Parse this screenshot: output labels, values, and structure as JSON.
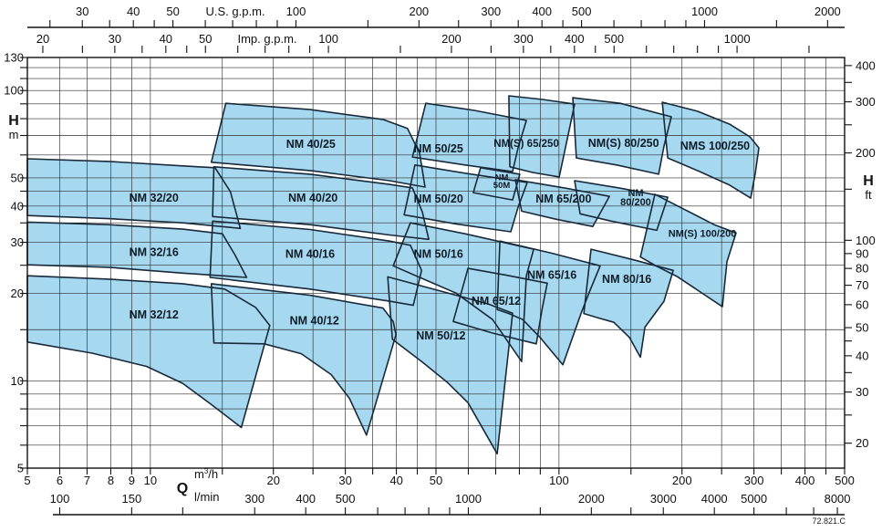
{
  "meta": {
    "code": "72.821.C"
  },
  "axes": {
    "us": {
      "label": "U.S. g.p.m.",
      "ticks": [
        25,
        30,
        35,
        40,
        45,
        50,
        60,
        70,
        80,
        90,
        100,
        150,
        200,
        250,
        300,
        350,
        400,
        450,
        500,
        600,
        700,
        800,
        900,
        1000,
        1500,
        2000
      ],
      "labeled": [
        30,
        40,
        50,
        100,
        200,
        300,
        400,
        500,
        1000,
        2000
      ]
    },
    "imp": {
      "label": "Imp. g.p.m.",
      "ticks": [
        20,
        25,
        30,
        35,
        40,
        45,
        50,
        60,
        70,
        80,
        90,
        100,
        150,
        200,
        250,
        300,
        350,
        400,
        450,
        500,
        600,
        700,
        800,
        900,
        1000,
        1500
      ],
      "labeled": [
        20,
        30,
        40,
        50,
        100,
        200,
        300,
        400,
        500,
        1000
      ]
    },
    "left": {
      "title": "H",
      "unit": "m",
      "ticks": [
        5,
        6,
        7,
        8,
        9,
        10,
        15,
        20,
        25,
        30,
        35,
        40,
        45,
        50,
        60,
        70,
        80,
        90,
        100,
        110,
        120,
        130
      ],
      "labeled": [
        5,
        10,
        20,
        30,
        40,
        50,
        100,
        130
      ]
    },
    "right": {
      "title": "H",
      "unit": "ft",
      "ticks": [
        20,
        25,
        30,
        35,
        40,
        45,
        50,
        60,
        70,
        80,
        90,
        100,
        150,
        200,
        250,
        300,
        350,
        400
      ],
      "labeled": [
        20,
        30,
        40,
        50,
        60,
        70,
        80,
        90,
        100,
        200,
        300,
        400
      ]
    },
    "m3h": {
      "title": "Q",
      "unit": "m³/h",
      "ticks": [
        5,
        6,
        7,
        8,
        9,
        10,
        15,
        20,
        25,
        30,
        35,
        40,
        45,
        50,
        60,
        70,
        80,
        90,
        100,
        150,
        200,
        250,
        300,
        350,
        400,
        450,
        500
      ],
      "labeled": [
        5,
        6,
        7,
        8,
        9,
        10,
        20,
        30,
        40,
        50,
        100,
        200,
        300,
        400,
        500
      ]
    },
    "lmin": {
      "unit": "l/min",
      "ticks": [
        100,
        150,
        200,
        300,
        400,
        500,
        600,
        700,
        800,
        900,
        1000,
        1500,
        2000,
        2500,
        3000,
        4000,
        5000,
        6000,
        7000,
        8000
      ],
      "labeled": [
        100,
        150,
        300,
        400,
        500,
        1000,
        2000,
        3000,
        4000,
        5000,
        8000
      ]
    }
  },
  "chart_data": {
    "type": "area",
    "title": "Pump selection envelopes (head vs flow)",
    "x_axis": {
      "unit": "m³/h",
      "scale": "log",
      "range": [
        5,
        500
      ]
    },
    "y_axis": {
      "unit": "m",
      "scale": "log",
      "range": [
        5,
        130
      ]
    },
    "grid": "on",
    "grid_q": [
      5,
      6,
      7,
      8,
      9,
      10,
      15,
      20,
      25,
      30,
      35,
      40,
      45,
      50,
      60,
      70,
      80,
      90,
      100,
      150,
      200,
      250,
      300,
      350,
      400,
      450,
      500
    ],
    "grid_h": [
      5,
      6,
      7,
      8,
      9,
      10,
      15,
      20,
      25,
      30,
      35,
      40,
      45,
      50,
      60,
      70,
      80,
      90,
      100,
      110,
      120,
      130
    ],
    "envelopes": [
      {
        "name": "NM 32/20",
        "label": [
          "NM 32/20"
        ],
        "label_at": [
          10.2,
          42.6
        ],
        "pts": [
          [
            5,
            58.2
          ],
          [
            7.9,
            57.0
          ],
          [
            12.0,
            55.0
          ],
          [
            14.4,
            54.2
          ],
          [
            15.7,
            44.8
          ],
          [
            16.6,
            33.5
          ],
          [
            12.0,
            35.0
          ],
          [
            7.9,
            36.2
          ],
          [
            5,
            37.1
          ]
        ]
      },
      {
        "name": "NM 32/16",
        "label": [
          "NM 32/16"
        ],
        "label_at": [
          10.2,
          27.7
        ],
        "pts": [
          [
            5,
            35.2
          ],
          [
            7.9,
            34.5
          ],
          [
            12.0,
            33.3
          ],
          [
            15.0,
            32.1
          ],
          [
            16.1,
            27.2
          ],
          [
            17.2,
            22.7
          ],
          [
            12.0,
            23.5
          ],
          [
            7.9,
            24.6
          ],
          [
            5,
            25.1
          ]
        ]
      },
      {
        "name": "NM 32/12",
        "label": [
          "NM 32/12"
        ],
        "label_at": [
          10.2,
          16.9
        ],
        "pts": [
          [
            5,
            23.0
          ],
          [
            7.9,
            22.4
          ],
          [
            12.0,
            21.6
          ],
          [
            15.2,
            20.7
          ],
          [
            18.1,
            17.9
          ],
          [
            19.6,
            15.5
          ],
          [
            16.7,
            6.9
          ],
          [
            14.0,
            8.35
          ],
          [
            12.0,
            9.8
          ],
          [
            9.8,
            11.2
          ],
          [
            7.2,
            12.45
          ],
          [
            5,
            13.6
          ]
        ]
      },
      {
        "name": "NM 40/25",
        "label": [
          "NM 40/25"
        ],
        "label_at": [
          24.7,
          65.3
        ],
        "pts": [
          [
            15.3,
            90.4
          ],
          [
            24.6,
            86.0
          ],
          [
            37.1,
            79.5
          ],
          [
            42.6,
            74.0
          ],
          [
            45.6,
            60.7
          ],
          [
            47.0,
            46.5
          ],
          [
            38.5,
            48.9
          ],
          [
            24.6,
            53.0
          ],
          [
            14.1,
            56.6
          ]
        ]
      },
      {
        "name": "NM 40/20",
        "label": [
          "NM 40/20"
        ],
        "label_at": [
          25.0,
          42.6
        ],
        "pts": [
          [
            14.3,
            54.6
          ],
          [
            24.6,
            51.5
          ],
          [
            38.5,
            47.5
          ],
          [
            43.8,
            46.2
          ],
          [
            46.3,
            38.2
          ],
          [
            48.0,
            30.7
          ],
          [
            38.5,
            31.8
          ],
          [
            24.6,
            34.5
          ],
          [
            14.2,
            36.8
          ]
        ]
      },
      {
        "name": "NM 40/16",
        "label": [
          "NM 40/16"
        ],
        "label_at": [
          24.6,
          27.3
        ],
        "pts": [
          [
            14.2,
            35.5
          ],
          [
            24.6,
            33.2
          ],
          [
            38.5,
            30.3
          ],
          [
            43.3,
            29.3
          ],
          [
            46.1,
            24.0
          ],
          [
            44.0,
            18.2
          ],
          [
            38.5,
            18.8
          ],
          [
            24.6,
            20.7
          ],
          [
            14.0,
            22.7
          ]
        ]
      },
      {
        "name": "NM 40/12",
        "label": [
          "NM 40/12"
        ],
        "label_at": [
          25.2,
          16.1
        ],
        "pts": [
          [
            14.1,
            21.6
          ],
          [
            24.6,
            19.7
          ],
          [
            37.1,
            17.8
          ],
          [
            39.3,
            16.0
          ],
          [
            39.9,
            14.4
          ],
          [
            33.8,
            6.5
          ],
          [
            30.7,
            8.7
          ],
          [
            27.7,
            10.5
          ],
          [
            23.4,
            12.4
          ],
          [
            19.0,
            13.4
          ],
          [
            14.3,
            13.5
          ]
        ]
      },
      {
        "name": "NM 50/25",
        "label": [
          "NM 50/25"
        ],
        "label_at": [
          50.7,
          63.1
        ],
        "pts": [
          [
            47.2,
            90.4
          ],
          [
            62.1,
            85.4
          ],
          [
            83.2,
            78.9
          ],
          [
            79.4,
            63.5
          ],
          [
            77.0,
            52.6
          ],
          [
            58.9,
            55.4
          ],
          [
            43.8,
            59.0
          ]
        ]
      },
      {
        "name": "NM 50M",
        "label": [
          "NM",
          "50M"
        ],
        "label_at": [
          72.4,
          49.0
        ],
        "size": 9.5,
        "pts": [
          [
            64.3,
            54.2
          ],
          [
            80.2,
            51.5
          ],
          [
            77.0,
            42.0
          ],
          [
            61.7,
            44.5
          ]
        ]
      },
      {
        "name": "NM 50/20",
        "label": [
          "NM 50/20"
        ],
        "label_at": [
          50.7,
          42.3
        ],
        "pts": [
          [
            44.4,
            55.4
          ],
          [
            58.9,
            51.9
          ],
          [
            83.6,
            48.2
          ],
          [
            79.4,
            39.6
          ],
          [
            76.2,
            32.6
          ],
          [
            56.0,
            34.7
          ],
          [
            41.8,
            37.3
          ]
        ]
      },
      {
        "name": "NM 50/16",
        "label": [
          "NM 50/16"
        ],
        "label_at": [
          50.7,
          27.3
        ],
        "pts": [
          [
            43.3,
            35.0
          ],
          [
            58.9,
            32.1
          ],
          [
            86.7,
            28.4
          ],
          [
            83.2,
            23.0
          ],
          [
            81.0,
            11.65
          ],
          [
            68.8,
            16.25
          ],
          [
            56.0,
            20.05
          ],
          [
            45.6,
            22.7
          ],
          [
            39.3,
            24.9
          ]
        ]
      },
      {
        "name": "NM 50/12",
        "label": [
          "NM 50/12"
        ],
        "label_at": [
          51.4,
          14.3
        ],
        "pts": [
          [
            38.1,
            22.8
          ],
          [
            50.5,
            20.5
          ],
          [
            67.0,
            18.4
          ],
          [
            77.0,
            17.1
          ],
          [
            70.6,
            5.6
          ],
          [
            59.9,
            8.4
          ],
          [
            53.2,
            9.9
          ],
          [
            46.3,
            11.6
          ],
          [
            39.1,
            13.9
          ]
        ]
      },
      {
        "name": "NM(S) 65/250",
        "label": [
          "NM(S) 65/250"
        ],
        "label_at": [
          83.2,
          65.8
        ],
        "size": 11.5,
        "pts": [
          [
            75.4,
            95.9
          ],
          [
            91.2,
            93.2
          ],
          [
            109.2,
            89.8
          ],
          [
            104.8,
            68.2
          ],
          [
            100.1,
            50.4
          ],
          [
            86.2,
            52.2
          ],
          [
            75.8,
            54.6
          ]
        ]
      },
      {
        "name": "NM 65/200",
        "label": [
          "NM 65/200"
        ],
        "label_at": [
          102.6,
          42.3
        ],
        "pts": [
          [
            78.2,
            49.3
          ],
          [
            103.8,
            46.1
          ],
          [
            132.8,
            43.2
          ],
          [
            121.0,
            34.0
          ],
          [
            98.5,
            36.0
          ],
          [
            81.0,
            38.4
          ]
        ]
      },
      {
        "name": "NM 65/16",
        "label": [
          "NM 65/16"
        ],
        "label_at": [
          96.1,
          23.1
        ],
        "pts": [
          [
            71.7,
            30.3
          ],
          [
            96.1,
            27.5
          ],
          [
            126.1,
            24.9
          ],
          [
            118.6,
            20.2
          ],
          [
            113.2,
            17.05
          ],
          [
            102.2,
            11.35
          ],
          [
            89.9,
            14.1
          ],
          [
            81.5,
            16.25
          ],
          [
            75.4,
            17.05
          ],
          [
            70.6,
            17.6
          ]
        ]
      },
      {
        "name": "NM 65/12",
        "label": [
          "NM 65/12"
        ],
        "label_at": [
          70.2,
          18.8
        ],
        "pts": [
          [
            59.9,
            24.4
          ],
          [
            74.3,
            23.1
          ],
          [
            93.6,
            21.7
          ],
          [
            90.8,
            17.5
          ],
          [
            88.0,
            13.4
          ],
          [
            68.8,
            14.6
          ],
          [
            55.1,
            16.0
          ]
        ]
      },
      {
        "name": "NM(S) 80/250",
        "label": [
          "NM(S) 80/250"
        ],
        "label_at": [
          143.9,
          65.8
        ],
        "pts": [
          [
            108.1,
            94.5
          ],
          [
            141.2,
            90.4
          ],
          [
            188.3,
            81.2
          ],
          [
            180.7,
            64.4
          ],
          [
            175.3,
            51.5
          ],
          [
            138.4,
            55.4
          ],
          [
            110.3,
            58.6
          ]
        ]
      },
      {
        "name": "NM 80/200",
        "label": [
          "NM",
          "80/200"
        ],
        "label_at": [
          154.1,
          42.9
        ],
        "size": 11,
        "pts": [
          [
            109.2,
            48.9
          ],
          [
            141.2,
            46.1
          ],
          [
            184.6,
            42.9
          ],
          [
            173.5,
            33.0
          ],
          [
            134.2,
            35.5
          ],
          [
            112.6,
            37.6
          ]
        ]
      },
      {
        "name": "NM 80/16",
        "label": [
          "NM 80/16"
        ],
        "label_at": [
          146.5,
          22.4
        ],
        "pts": [
          [
            119.8,
            28.4
          ],
          [
            152.5,
            26.1
          ],
          [
            190.3,
            24.0
          ],
          [
            180.7,
            18.8
          ],
          [
            162.3,
            15.3
          ],
          [
            158.2,
            12.05
          ],
          [
            148.7,
            14.1
          ],
          [
            136.2,
            15.9
          ],
          [
            124.2,
            16.5
          ],
          [
            115.0,
            17.05
          ]
        ]
      },
      {
        "name": "NMS 100/250",
        "label": [
          "NMS 100/250"
        ],
        "label_at": [
          240.9,
          64.4
        ],
        "pts": [
          [
            179.0,
            91.2
          ],
          [
            218.6,
            84.8
          ],
          [
            261.7,
            76.6
          ],
          [
            293.1,
            69.3
          ],
          [
            308.5,
            63.5
          ],
          [
            302.3,
            51.9
          ],
          [
            294.5,
            42.6
          ],
          [
            261.7,
            47.2
          ],
          [
            220.9,
            52.6
          ],
          [
            184.6,
            58.6
          ]
        ]
      },
      {
        "name": "NM(S) 100/200",
        "label": [
          "NM(S) 100/200"
        ],
        "label_at": [
          224.3,
          32.3
        ],
        "size": 11,
        "pts": [
          [
            171.7,
            43.9
          ],
          [
            202.4,
            39.0
          ],
          [
            239.8,
            34.5
          ],
          [
            271.3,
            32.3
          ],
          [
            257.7,
            25.7
          ],
          [
            251.1,
            18.0
          ],
          [
            220.9,
            20.3
          ],
          [
            195.2,
            22.8
          ],
          [
            173.5,
            24.8
          ],
          [
            158.2,
            26.7
          ]
        ]
      }
    ]
  },
  "style": {
    "envelope_fill": "#a6d8ef",
    "envelope_stroke": "#18293a",
    "grid_color": "#2e2e2e",
    "axis_color": "#111111",
    "text_color": "#111111"
  }
}
